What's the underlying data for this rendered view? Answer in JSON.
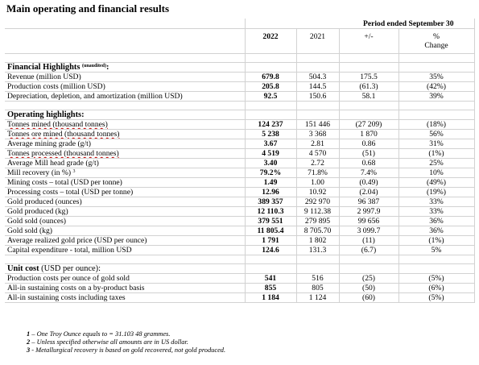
{
  "title": "Main operating and financial results",
  "header": {
    "period": "Period ended September 30",
    "col_2022": "2022",
    "col_2021": "2021",
    "col_diff": "+/-",
    "col_pct1": "%",
    "col_pct2": "Change"
  },
  "financial": {
    "heading": "Financial Highlights",
    "heading_sup": "(unaudited)",
    "heading_colon": ":",
    "rows": [
      {
        "label": "Revenue (million USD)",
        "v2022": "679.8",
        "v2021": "504.3",
        "diff": "175.5",
        "pct": "35%"
      },
      {
        "label": "Production costs (million USD)",
        "v2022": "205.8",
        "v2021": "144.5",
        "diff": "(61.3)",
        "pct": "(42%)"
      },
      {
        "label": "Depreciation, depletion, and amortization (million USD)",
        "v2022": "92.5",
        "v2021": "150.6",
        "diff": "58.1",
        "pct": "39%"
      }
    ]
  },
  "operating": {
    "heading": "Operating highlights:",
    "rows": [
      {
        "label": "Tonnes mined (thousand tonnes)",
        "v2022": "124 237",
        "v2021": "151 446",
        "diff": "(27 209)",
        "pct": "(18%)"
      },
      {
        "label": "Tonnes ore mined (thousand tonnes)",
        "v2022": "5 238",
        "v2021": "3 368",
        "diff": "1 870",
        "pct": "56%"
      },
      {
        "label": "Average mining grade (g/t)",
        "v2022": "3.67",
        "v2021": "2.81",
        "diff": "0.86",
        "pct": "31%"
      },
      {
        "label": "Tonnes processed (thousand tonnes)",
        "v2022": "4 519",
        "v2021": "4 570",
        "diff": "(51)",
        "pct": "(1%)"
      },
      {
        "label": "Average Mill head grade (g/t)",
        "v2022": "3.40",
        "v2021": "2.72",
        "diff": "0.68",
        "pct": "25%"
      },
      {
        "label": "Mill recovery (in %)",
        "label_sup": "3",
        "v2022": "79.2%",
        "v2021": "71.8%",
        "diff": "7.4%",
        "pct": "10%"
      },
      {
        "label": "Mining costs – total (USD per tonne)",
        "v2022": "1.49",
        "v2021": "1.00",
        "diff": "(0.49)",
        "pct": "(49%)"
      },
      {
        "label": "Processing costs – total (USD per tonne)",
        "v2022": "12.96",
        "v2021": "10.92",
        "diff": "(2.04)",
        "pct": "(19%)"
      },
      {
        "label": "Gold produced (ounces)",
        "v2022": "389 357",
        "v2021": "292 970",
        "diff": "96 387",
        "pct": "33%"
      },
      {
        "label": "Gold produced (kg)",
        "v2022": "12 110.3",
        "v2021": "9 112.38",
        "diff": "2 997.9",
        "pct": "33%"
      },
      {
        "label": "Gold sold (ounces)",
        "v2022": "379 551",
        "v2021": "279 895",
        "diff": "99 656",
        "pct": "36%"
      },
      {
        "label": "Gold sold (kg)",
        "v2022": "11 805.4",
        "v2021": "8 705.70",
        "diff": "3 099.7",
        "pct": "36%"
      },
      {
        "label": "Average realized gold price (USD per ounce)",
        "v2022": "1 791",
        "v2021": "1 802",
        "diff": "(11)",
        "pct": "(1%)"
      },
      {
        "label": "Capital expenditure - total, million USD",
        "v2022": "124.6",
        "v2021": "131.3",
        "diff": "(6.7)",
        "pct": "5%"
      }
    ]
  },
  "unit_cost": {
    "heading": "Unit cost",
    "heading_rest": " (USD per ounce):",
    "rows": [
      {
        "label": "Production costs per ounce of gold sold",
        "v2022": "541",
        "v2021": "516",
        "diff": "(25)",
        "pct": "(5%)"
      },
      {
        "label": "All-in sustaining costs on a by-product basis",
        "v2022": "855",
        "v2021": "805",
        "diff": "(50)",
        "pct": "(6%)"
      },
      {
        "label": "All-in sustaining costs including taxes",
        "v2022": "1 184",
        "v2021": "1 124",
        "diff": "(60)",
        "pct": "(5%)"
      }
    ]
  },
  "footnotes": [
    {
      "num": "1",
      "text": " – One Troy Ounce equals to = 31.103 48 grammes."
    },
    {
      "num": "2",
      "text": " – Unless specified otherwise all amounts are in US dollar."
    },
    {
      "num": "3",
      "text": " - Metallurgical recovery is based on gold recovered, not gold produced."
    }
  ]
}
